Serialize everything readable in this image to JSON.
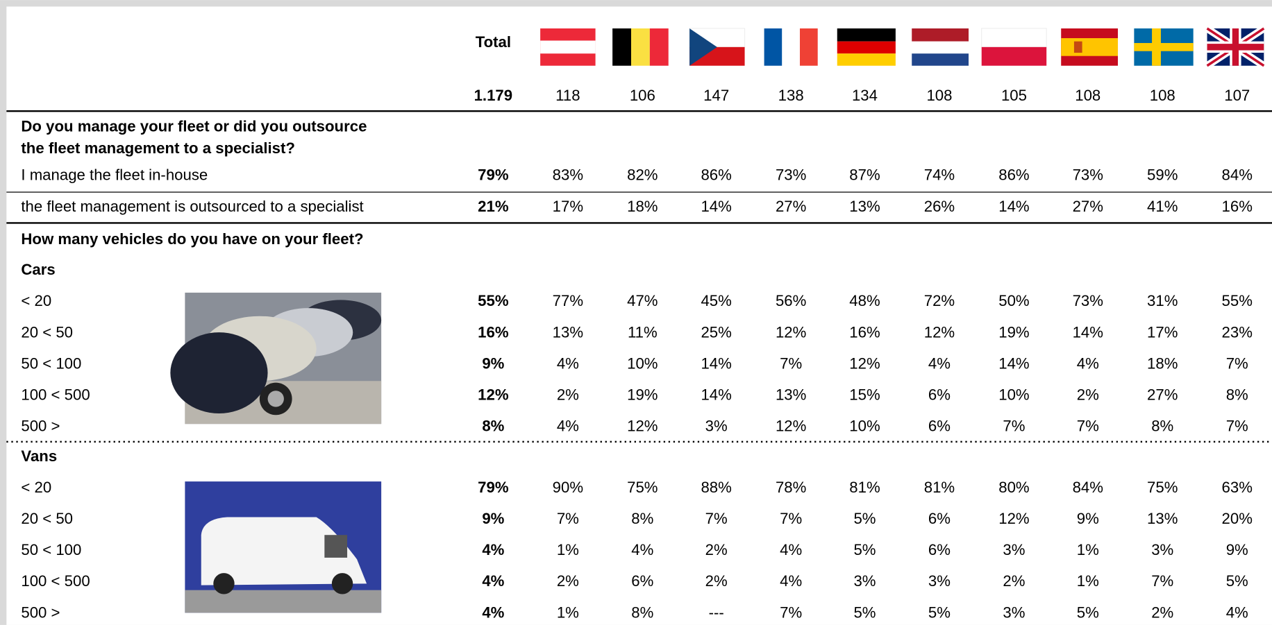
{
  "header": {
    "total_label": "Total"
  },
  "sample": {
    "total": "1.179",
    "countries": [
      "118",
      "106",
      "147",
      "138",
      "134",
      "108",
      "105",
      "108",
      "108",
      "107"
    ]
  },
  "sections": [
    {
      "question": [
        "Do you manage your fleet or did you outsource",
        "the fleet management to a specialist?"
      ],
      "rows": [
        {
          "label": "I manage the fleet in-house",
          "total": "79%",
          "values": [
            "83%",
            "82%",
            "86%",
            "73%",
            "87%",
            "74%",
            "86%",
            "73%",
            "59%",
            "84%"
          ]
        },
        {
          "label": "the fleet management is outsourced to a specialist",
          "total": "21%",
          "values": [
            "17%",
            "18%",
            "14%",
            "27%",
            "13%",
            "26%",
            "14%",
            "27%",
            "41%",
            "16%"
          ]
        }
      ]
    },
    {
      "question": [
        "How many vehicles do you have on your fleet?"
      ],
      "groups": [
        {
          "title": "Cars",
          "rows": [
            {
              "label": "< 20",
              "total": "55%",
              "values": [
                "77%",
                "47%",
                "45%",
                "56%",
                "48%",
                "72%",
                "50%",
                "73%",
                "31%",
                "55%"
              ]
            },
            {
              "label": "20 < 50",
              "total": "16%",
              "values": [
                "13%",
                "11%",
                "25%",
                "12%",
                "16%",
                "12%",
                "19%",
                "14%",
                "17%",
                "23%"
              ]
            },
            {
              "label": "50 < 100",
              "total": "9%",
              "values": [
                "4%",
                "10%",
                "14%",
                "7%",
                "12%",
                "4%",
                "14%",
                "4%",
                "18%",
                "7%"
              ]
            },
            {
              "label": "100 < 500",
              "total": "12%",
              "values": [
                "2%",
                "19%",
                "14%",
                "13%",
                "15%",
                "6%",
                "10%",
                "2%",
                "27%",
                "8%"
              ]
            },
            {
              "label": "500 >",
              "total": "8%",
              "values": [
                "4%",
                "12%",
                "3%",
                "12%",
                "10%",
                "6%",
                "7%",
                "7%",
                "8%",
                "7%"
              ]
            }
          ]
        },
        {
          "title": "Vans",
          "rows": [
            {
              "label": "< 20",
              "total": "79%",
              "values": [
                "90%",
                "75%",
                "88%",
                "78%",
                "81%",
                "81%",
                "80%",
                "84%",
                "75%",
                "63%"
              ]
            },
            {
              "label": "20 < 50",
              "total": "9%",
              "values": [
                "7%",
                "8%",
                "7%",
                "7%",
                "5%",
                "6%",
                "12%",
                "9%",
                "13%",
                "20%"
              ]
            },
            {
              "label": "50 < 100",
              "total": "4%",
              "values": [
                "1%",
                "4%",
                "2%",
                "4%",
                "5%",
                "6%",
                "3%",
                "1%",
                "3%",
                "9%"
              ]
            },
            {
              "label": "100 < 500",
              "total": "4%",
              "values": [
                "2%",
                "6%",
                "2%",
                "4%",
                "3%",
                "3%",
                "2%",
                "1%",
                "7%",
                "5%"
              ]
            },
            {
              "label": "500 >",
              "total": "4%",
              "values": [
                "1%",
                "8%",
                "---",
                "7%",
                "5%",
                "5%",
                "3%",
                "5%",
                "2%",
                "4%"
              ]
            }
          ]
        }
      ]
    }
  ]
}
